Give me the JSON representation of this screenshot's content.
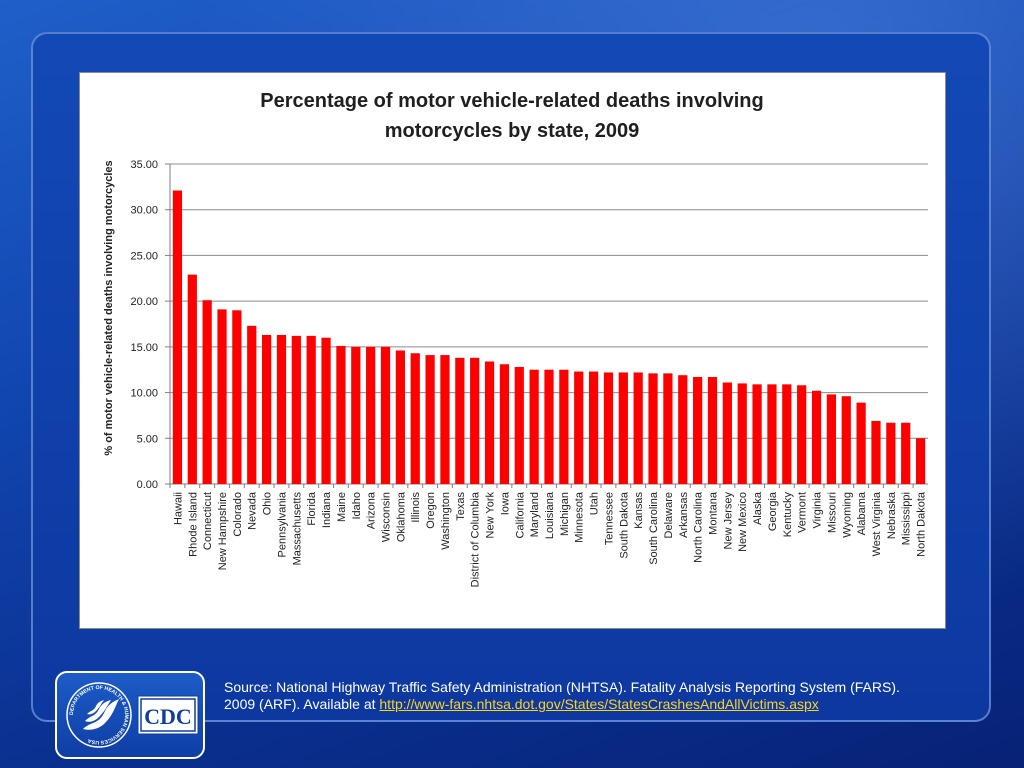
{
  "chart_data": {
    "type": "bar",
    "title_lines": [
      "Percentage of motor vehicle-related deaths involving",
      "motorcycles by state, 2009"
    ],
    "ylabel": "% of motor vehicle-related deaths involving  motorcycles",
    "xlabel": "",
    "ylim": [
      0,
      35
    ],
    "yticks": [
      "0.00",
      "5.00",
      "10.00",
      "15.00",
      "20.00",
      "25.00",
      "30.00",
      "35.00"
    ],
    "grid": true,
    "bar_color": "#ff0000",
    "categories": [
      "Hawaii",
      "Rhode Island",
      "Connecticut",
      "New Hampshire",
      "Colorado",
      "Nevada",
      "Ohio",
      "Pennsylvania",
      "Massachusetts",
      "Florida",
      "Indiana",
      "Maine",
      "Idaho",
      "Arizona",
      "Wisconsin",
      "Oklahoma",
      "Illinois",
      "Oregon",
      "Washington",
      "Texas",
      "District of Columbia",
      "New York",
      "Iowa",
      "California",
      "Maryland",
      "Louisiana",
      "Michigan",
      "Minnesota",
      "Utah",
      "Tennessee",
      "South Dakota",
      "Kansas",
      "South Carolina",
      "Delaware",
      "Arkansas",
      "North Carolina",
      "Montana",
      "New Jersey",
      "New Mexico",
      "Alaska",
      "Georgia",
      "Kentucky",
      "Vermont",
      "Virginia",
      "Missouri",
      "Wyoming",
      "Alabama",
      "West Virginia",
      "Nebraska",
      "Mississippi",
      "North Dakota"
    ],
    "values": [
      32.1,
      22.9,
      20.1,
      19.1,
      19.0,
      17.3,
      16.3,
      16.3,
      16.2,
      16.2,
      16.0,
      15.1,
      15.0,
      15.0,
      15.0,
      14.6,
      14.3,
      14.1,
      14.1,
      13.8,
      13.8,
      13.4,
      13.1,
      12.8,
      12.5,
      12.5,
      12.5,
      12.3,
      12.3,
      12.2,
      12.2,
      12.2,
      12.1,
      12.1,
      11.9,
      11.7,
      11.7,
      11.1,
      11.0,
      10.9,
      10.9,
      10.9,
      10.8,
      10.2,
      9.8,
      9.6,
      8.9,
      6.9,
      6.7,
      6.7,
      5.0
    ]
  },
  "source": {
    "line1": "Source: National Highway Traffic Safety Administration (NHTSA). Fatality Analysis Reporting System (FARS).",
    "line2_prefix": "2009 (ARF). Available at ",
    "link_text": "http://www-fars.nhtsa.dot.gov/States/StatesCrashesAndAllVictims.aspx"
  },
  "logo": {
    "cdc_text": "CDC",
    "seal_text": "DEPARTMENT OF HEALTH & HUMAN SERVICES USA"
  },
  "colors": {
    "background": "#1146b0",
    "link": "#ffd21f"
  }
}
